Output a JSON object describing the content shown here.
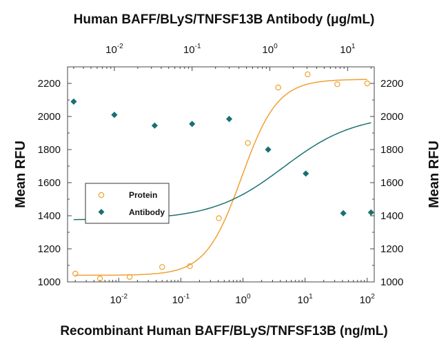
{
  "chart_data": {
    "type": "scatter",
    "title": "Human BAFF/BLyS/TNFSF13B Antibody (μg/mL)",
    "xlabel": "Recombinant Human BAFF/BLyS/TNFSF13B (ng/mL)",
    "ylabel_left": "Mean RFU",
    "ylabel_right": "Mean RFU",
    "x_scale": "log",
    "xlim": [
      0.0015,
      130
    ],
    "ylim": [
      1000,
      2300
    ],
    "bottom_axis_ticks": [
      {
        "base": "10",
        "exp": "-2",
        "value": 0.01
      },
      {
        "base": "10",
        "exp": "-1",
        "value": 0.1
      },
      {
        "base": "10",
        "exp": "0",
        "value": 1
      },
      {
        "base": "10",
        "exp": "1",
        "value": 10
      },
      {
        "base": "10",
        "exp": "2",
        "value": 100
      }
    ],
    "top_axis_ticks": [
      {
        "base": "10",
        "exp": "-2",
        "value": 0.01
      },
      {
        "base": "10",
        "exp": "-1",
        "value": 0.1
      },
      {
        "base": "10",
        "exp": "0",
        "value": 1
      },
      {
        "base": "10",
        "exp": "1",
        "value": 10
      }
    ],
    "top_axis_xlim": [
      0.0025,
      22
    ],
    "y_ticks": [
      "1000",
      "1200",
      "1400",
      "1600",
      "1800",
      "2000",
      "2200"
    ],
    "grid": false,
    "legend_position": "center-left",
    "series": [
      {
        "name": "Protein",
        "axis": "bottom",
        "marker": "open-circle",
        "color": "#f0a030",
        "points": [
          {
            "x": 0.002,
            "y": 1050
          },
          {
            "x": 0.005,
            "y": 1020
          },
          {
            "x": 0.015,
            "y": 1030
          },
          {
            "x": 0.05,
            "y": 1090
          },
          {
            "x": 0.14,
            "y": 1095
          },
          {
            "x": 0.41,
            "y": 1385
          },
          {
            "x": 1.2,
            "y": 1840
          },
          {
            "x": 3.7,
            "y": 2175
          },
          {
            "x": 11,
            "y": 2255
          },
          {
            "x": 33,
            "y": 2195
          },
          {
            "x": 100,
            "y": 2200
          }
        ],
        "fit": {
          "bottom": 1040,
          "top": 2225,
          "ec50": 0.95,
          "hill": 1.5
        }
      },
      {
        "name": "Antibody",
        "axis": "top",
        "marker": "filled-diamond",
        "color": "#1a7070",
        "points": [
          {
            "x": 0.003,
            "y": 2090
          },
          {
            "x": 0.01,
            "y": 2010
          },
          {
            "x": 0.033,
            "y": 1945
          },
          {
            "x": 0.1,
            "y": 1955
          },
          {
            "x": 0.3,
            "y": 1985
          },
          {
            "x": 0.95,
            "y": 1800
          },
          {
            "x": 2.9,
            "y": 1655
          },
          {
            "x": 8.8,
            "y": 1415
          },
          {
            "x": 20,
            "y": 1420
          }
        ],
        "fit": {
          "bottom": 1375,
          "top": 2012,
          "ec50": 1.5,
          "hill": 0.95
        }
      }
    ]
  }
}
